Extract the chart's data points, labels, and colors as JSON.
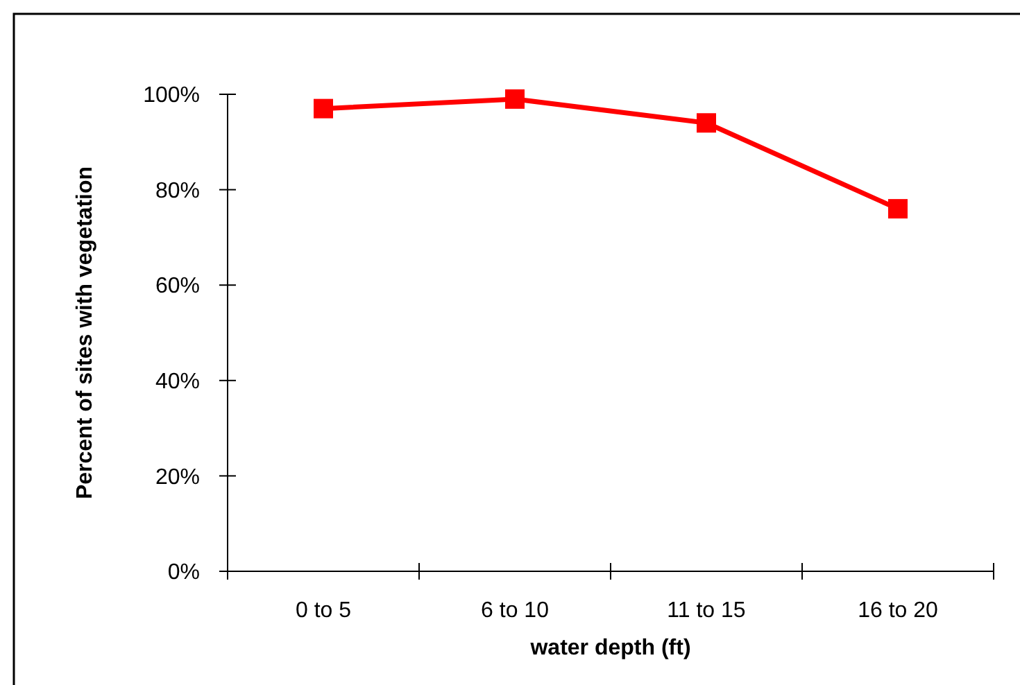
{
  "chart_data": {
    "type": "line",
    "xlabel": "water depth (ft)",
    "ylabel": "Percent of sites with vegetation",
    "categories": [
      "0 to 5",
      "6 to 10",
      "11 to 15",
      "16 to 20"
    ],
    "series": [
      {
        "color": "#ff0000",
        "values": [
          97,
          99,
          94,
          76
        ]
      }
    ],
    "ylim": [
      0,
      100
    ],
    "yticks": [
      {
        "value": 0,
        "label": "0%"
      },
      {
        "value": 20,
        "label": "20%"
      },
      {
        "value": 40,
        "label": "40%"
      },
      {
        "value": 60,
        "label": "60%"
      },
      {
        "value": 80,
        "label": "80%"
      },
      {
        "value": 100,
        "label": "100%"
      }
    ],
    "marker": "square",
    "line_style": "solid"
  }
}
